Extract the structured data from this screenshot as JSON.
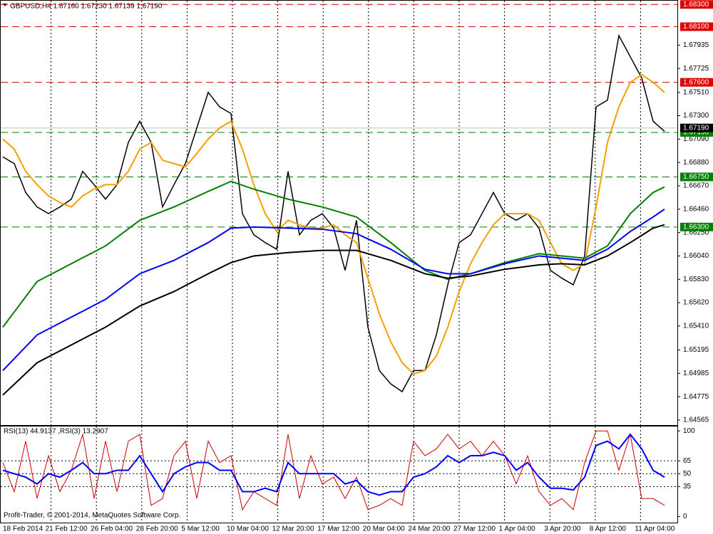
{
  "chart_data": [
    {
      "type": "line",
      "title": "GBPUSD,H4  1.67160 1.67230 1.67139 1.67190",
      "ylim": [
        1.6452,
        1.6834
      ],
      "yticks": [
        {
          "value": 1.67935,
          "label": "1.67935"
        },
        {
          "value": 1.67725,
          "label": "1.67725"
        },
        {
          "value": 1.6751,
          "label": "1.67510"
        },
        {
          "value": 1.673,
          "label": "1.67300"
        },
        {
          "value": 1.6709,
          "label": "1.67090"
        },
        {
          "value": 1.6688,
          "label": "1.66880"
        },
        {
          "value": 1.6667,
          "label": "1.66670"
        },
        {
          "value": 1.6646,
          "label": "1.66460"
        },
        {
          "value": 1.6625,
          "label": "1.66250"
        },
        {
          "value": 1.6604,
          "label": "1.66040"
        },
        {
          "value": 1.6583,
          "label": "1.65830"
        },
        {
          "value": 1.6562,
          "label": "1.65620"
        },
        {
          "value": 1.6541,
          "label": "1.65410"
        },
        {
          "value": 1.65195,
          "label": "1.65195"
        },
        {
          "value": 1.64985,
          "label": "1.64985"
        },
        {
          "value": 1.64775,
          "label": "1.64775"
        },
        {
          "value": 1.64565,
          "label": "1.64565"
        }
      ],
      "xticks": [
        "18 Feb 2014",
        "21 Feb 12:00",
        "26 Feb 04:00",
        "28 Feb 20:00",
        "5 Mar 12:00",
        "10 Mar 04:00",
        "12 Mar 20:00",
        "17 Mar 12:00",
        "20 Mar 04:00",
        "24 Mar 20:00",
        "27 Mar 12:00",
        "1 Apr 04:00",
        "3 Apr 20:00",
        "8 Apr 12:00",
        "11 Apr 04:00"
      ],
      "grid": true,
      "levels": [
        {
          "value": 1.683,
          "label": "1.68300",
          "color": "#dd0000"
        },
        {
          "value": 1.681,
          "label": "1.68100",
          "color": "#dd0000"
        },
        {
          "value": 1.676,
          "label": "1.67600",
          "color": "#dd0000"
        },
        {
          "value": 1.6715,
          "label": "1.67150",
          "color": "#008000"
        },
        {
          "value": 1.6675,
          "label": "1.66750",
          "color": "#008000"
        },
        {
          "value": 1.663,
          "label": "1.66300",
          "color": "#008000"
        }
      ],
      "bid": {
        "value": 1.6719,
        "label": "1.67190"
      },
      "series": [
        {
          "color": "#000000",
          "values": [
            1.6693,
            1.6687,
            1.6661,
            1.6648,
            1.6642,
            1.6648,
            1.6655,
            1.668,
            1.6668,
            1.6655,
            1.6668,
            1.6706,
            1.6725,
            1.6706,
            1.6648,
            1.6668,
            1.6687,
            1.6719,
            1.6751,
            1.6738,
            1.6732,
            1.6642,
            1.6623,
            1.6616,
            1.661,
            1.668,
            1.6623,
            1.6636,
            1.6642,
            1.6629,
            1.6591,
            1.6636,
            1.654,
            1.6501,
            1.6489,
            1.6482,
            1.6501,
            1.6501,
            1.6533,
            1.6578,
            1.6616,
            1.6623,
            1.6642,
            1.6661,
            1.6642,
            1.6636,
            1.6642,
            1.6629,
            1.6591,
            1.6584,
            1.6578,
            1.6604,
            1.6738,
            1.6744,
            1.6802,
            1.6783,
            1.6764,
            1.6725,
            1.6716
          ]
        },
        {
          "color": "#f5a000",
          "values": [
            1.6709,
            1.67,
            1.668,
            1.6668,
            1.6658,
            1.6652,
            1.6648,
            1.6658,
            1.6664,
            1.6668,
            1.6668,
            1.668,
            1.67,
            1.6706,
            1.669,
            1.6687,
            1.6684,
            1.6696,
            1.6709,
            1.6719,
            1.6725,
            1.67,
            1.6668,
            1.6642,
            1.6626,
            1.6636,
            1.6632,
            1.6629,
            1.6629,
            1.6632,
            1.6623,
            1.6616,
            1.6584,
            1.6552,
            1.6527,
            1.6508,
            1.6498,
            1.6501,
            1.6514,
            1.654,
            1.6572,
            1.6597,
            1.6616,
            1.6632,
            1.6642,
            1.6642,
            1.6642,
            1.6636,
            1.6616,
            1.6597,
            1.6591,
            1.6597,
            1.6648,
            1.6706,
            1.6738,
            1.676,
            1.6767,
            1.676,
            1.6751
          ]
        },
        {
          "color": "#008000",
          "x": [
            0,
            3,
            6,
            9,
            12,
            15,
            18,
            20,
            22,
            25,
            28,
            31,
            34,
            37,
            39,
            41,
            44,
            47,
            49,
            51,
            53,
            55,
            57,
            58
          ],
          "values": [
            1.654,
            1.6581,
            1.6597,
            1.6613,
            1.6636,
            1.6648,
            1.6662,
            1.6671,
            1.6664,
            1.6655,
            1.6648,
            1.6639,
            1.6616,
            1.6591,
            1.6583,
            1.6588,
            1.6598,
            1.6606,
            1.6604,
            1.6602,
            1.6613,
            1.6642,
            1.6661,
            1.6666
          ]
        },
        {
          "color": "#0000ff",
          "x": [
            0,
            3,
            6,
            9,
            12,
            15,
            18,
            20,
            22,
            25,
            28,
            31,
            34,
            37,
            39,
            41,
            44,
            47,
            49,
            51,
            53,
            55,
            57,
            58
          ],
          "values": [
            1.6501,
            1.6533,
            1.6549,
            1.6565,
            1.6588,
            1.66,
            1.6616,
            1.6629,
            1.663,
            1.6629,
            1.6628,
            1.6624,
            1.661,
            1.6592,
            1.6588,
            1.6588,
            1.6597,
            1.6604,
            1.6602,
            1.66,
            1.661,
            1.6626,
            1.6639,
            1.6646
          ]
        },
        {
          "color": "#000000",
          "x": [
            0,
            3,
            6,
            9,
            12,
            15,
            18,
            20,
            22,
            25,
            28,
            31,
            34,
            37,
            39,
            41,
            44,
            47,
            49,
            51,
            53,
            55,
            57,
            58
          ],
          "values": [
            1.6479,
            1.6508,
            1.6524,
            1.654,
            1.6559,
            1.6572,
            1.6588,
            1.6598,
            1.6604,
            1.6607,
            1.6609,
            1.6609,
            1.66,
            1.6588,
            1.6584,
            1.6586,
            1.6592,
            1.6596,
            1.6597,
            1.6596,
            1.6604,
            1.6616,
            1.6629,
            1.6632
          ]
        }
      ]
    },
    {
      "type": "line",
      "title": "RSI(13) 44.9137 ,RSI(3) 13.2907",
      "ylim": [
        -8,
        106
      ],
      "yticks": [
        0,
        35,
        50,
        65,
        100
      ],
      "series": [
        {
          "color": "#cc0000",
          "values": [
            63,
            29,
            88,
            21,
            71,
            29,
            54,
            96,
            21,
            88,
            29,
            88,
            96,
            13,
            21,
            71,
            88,
            21,
            88,
            63,
            71,
            8,
            29,
            21,
            13,
            96,
            21,
            71,
            38,
            46,
            21,
            46,
            8,
            13,
            21,
            13,
            88,
            71,
            79,
            96,
            79,
            88,
            71,
            88,
            71,
            38,
            71,
            29,
            13,
            21,
            8,
            63,
            100,
            100,
            54,
            96,
            21,
            21,
            13
          ]
        },
        {
          "color": "#0000ff",
          "values": [
            54,
            50,
            46,
            38,
            50,
            46,
            54,
            63,
            50,
            50,
            54,
            54,
            71,
            50,
            29,
            50,
            58,
            63,
            63,
            54,
            54,
            29,
            29,
            33,
            29,
            63,
            50,
            50,
            50,
            50,
            38,
            42,
            29,
            25,
            29,
            29,
            46,
            50,
            58,
            71,
            63,
            71,
            71,
            75,
            71,
            54,
            63,
            46,
            33,
            33,
            31,
            46,
            83,
            88,
            79,
            96,
            79,
            54,
            46
          ]
        }
      ]
    }
  ],
  "footer": "Profit-Trader, © 2001-2014, MetaQuotes Software Corp."
}
